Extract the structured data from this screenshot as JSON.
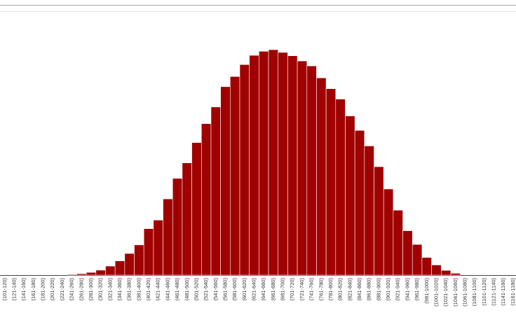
{
  "colors": {
    "bar": "#a00000",
    "bar_edge": "#ffffff",
    "axis": "#444444",
    "top_rule": "#a8a8a8"
  },
  "chart_data": {
    "type": "bar",
    "title": "",
    "xlabel": "",
    "ylabel": "",
    "grid": false,
    "ylim": [
      0,
      100
    ],
    "categories": [
      "(101-120)",
      "(121-140)",
      "(141-160)",
      "(161-180)",
      "(181-200)",
      "(201-220)",
      "(221-240)",
      "(241-260)",
      "(261-280)",
      "(281-300)",
      "(301-320)",
      "(321-340)",
      "(341-360)",
      "(361-380)",
      "(381-400)",
      "(401-420)",
      "(421-440)",
      "(441-460)",
      "(461-480)",
      "(481-500)",
      "(501-520)",
      "(521-540)",
      "(541-560)",
      "(561-580)",
      "(581-600)",
      "(601-620)",
      "(621-640)",
      "(641-660)",
      "(661-680)",
      "(681-700)",
      "(701-720)",
      "(721-740)",
      "(741-760)",
      "(761-780)",
      "(781-800)",
      "(801-820)",
      "(821-840)",
      "(841-860)",
      "(861-880)",
      "(881-900)",
      "(901-920)",
      "(921-940)",
      "(941-960)",
      "(961-980)",
      "(981-1000)",
      "(1001-1020)",
      "(1021-1040)",
      "(1041-1060)",
      "(1061-1080)",
      "(1081-1100)",
      "(1101-1120)",
      "(1121-1140)",
      "(1141-1160)",
      "(1161-1180)"
    ],
    "values": [
      0,
      0,
      0,
      0,
      0,
      0,
      0,
      0.3,
      0.6,
      1.2,
      2.2,
      4.0,
      6.3,
      9.6,
      13.4,
      20.6,
      24.4,
      33.8,
      42.9,
      49.8,
      58.8,
      67.2,
      74.6,
      83.6,
      88.1,
      93.4,
      97.5,
      99.3,
      100.0,
      98.8,
      97.3,
      95.0,
      92.8,
      87.5,
      82.7,
      78.1,
      70.6,
      64.2,
      57.3,
      48.1,
      38.2,
      28.8,
      19.7,
      13.6,
      7.8,
      4.5,
      2.1,
      0.8,
      0,
      0,
      0,
      0,
      0,
      0
    ]
  }
}
